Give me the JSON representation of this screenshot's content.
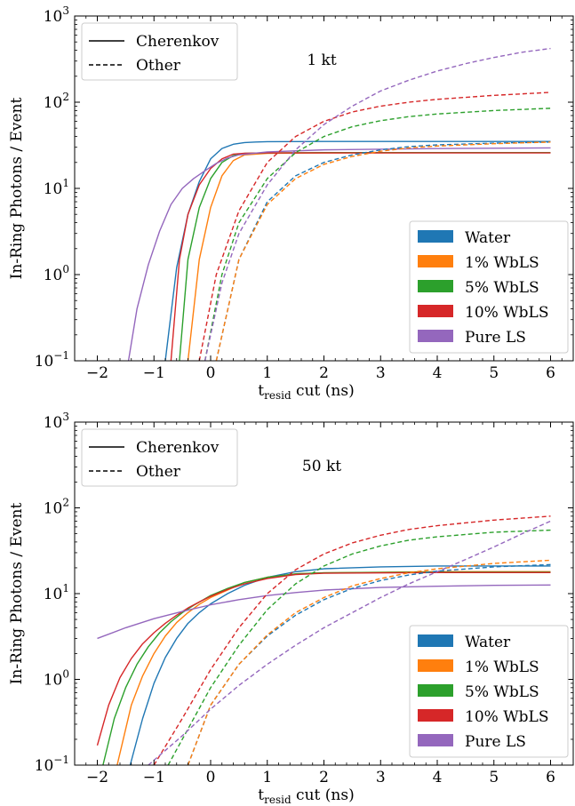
{
  "chart_data": [
    {
      "type": "line",
      "annotation": "1 kt",
      "xlabel_main": "t",
      "xlabel_sub": "resid",
      "xlabel_rest": " cut (ns)",
      "ylabel": "In-Ring Photons / Event",
      "xlim": [
        -2.4,
        6.4
      ],
      "ylim": [
        0.1,
        1000
      ],
      "yscale": "log",
      "x_ticks": [
        -2,
        -1,
        0,
        1,
        2,
        3,
        4,
        5,
        6
      ],
      "y_ticks": [
        {
          "value": 0.1,
          "base": "10",
          "exp": "−1"
        },
        {
          "value": 1,
          "base": "10",
          "exp": "0"
        },
        {
          "value": 10,
          "base": "10",
          "exp": "1"
        },
        {
          "value": 100,
          "base": "10",
          "exp": "2"
        },
        {
          "value": 1000,
          "base": "10",
          "exp": "3"
        }
      ],
      "style_legend": [
        {
          "label": "Cherenkov",
          "dash": "solid"
        },
        {
          "label": "Other",
          "dash": "dashed"
        }
      ],
      "color_legend": [
        {
          "label": "Water",
          "color": "#1f77b4"
        },
        {
          "label": "1% WbLS",
          "color": "#ff7f0e"
        },
        {
          "label": "5% WbLS",
          "color": "#2ca02c"
        },
        {
          "label": "10% WbLS",
          "color": "#d62728"
        },
        {
          "label": "Pure LS",
          "color": "#9467bd"
        }
      ],
      "series": [
        {
          "material": "Water",
          "kind": "Cherenkov",
          "color": "#1f77b4",
          "x": [
            -0.8,
            -0.6,
            -0.4,
            -0.2,
            0.0,
            0.2,
            0.4,
            0.6,
            0.8,
            1.0,
            2.0,
            4.0,
            6.0
          ],
          "y": [
            0.1,
            1.2,
            5,
            12,
            22,
            29,
            32.5,
            34,
            34.5,
            34.8,
            35,
            35,
            35
          ]
        },
        {
          "material": "1% WbLS",
          "kind": "Cherenkov",
          "color": "#ff7f0e",
          "x": [
            -0.4,
            -0.2,
            0.0,
            0.2,
            0.4,
            0.6,
            1.0,
            2.0,
            4.0,
            6.0
          ],
          "y": [
            0.1,
            1.5,
            6,
            14,
            21,
            24.5,
            25.5,
            25.8,
            26,
            26
          ]
        },
        {
          "material": "5% WbLS",
          "kind": "Cherenkov",
          "color": "#2ca02c",
          "x": [
            -0.55,
            -0.4,
            -0.2,
            0.0,
            0.2,
            0.4,
            0.6,
            1.0,
            2.0,
            4.0,
            6.0
          ],
          "y": [
            0.1,
            1.5,
            6,
            13,
            20,
            24,
            25.5,
            25.8,
            26,
            26,
            26
          ]
        },
        {
          "material": "10% WbLS",
          "kind": "Cherenkov",
          "color": "#d62728",
          "x": [
            -0.7,
            -0.55,
            -0.4,
            -0.2,
            0.0,
            0.2,
            0.4,
            0.6,
            1.0,
            2.0,
            4.0,
            6.0
          ],
          "y": [
            0.1,
            1.5,
            5,
            11,
            17,
            22,
            25,
            25.6,
            25.8,
            25.8,
            25.8,
            25.8
          ]
        },
        {
          "material": "Pure LS",
          "kind": "Cherenkov",
          "color": "#9467bd",
          "x": [
            -1.45,
            -1.3,
            -1.1,
            -0.9,
            -0.7,
            -0.5,
            -0.3,
            -0.1,
            0.1,
            0.3,
            0.5,
            1.0,
            2.0,
            4.0,
            6.0
          ],
          "y": [
            0.1,
            0.4,
            1.3,
            3.2,
            6.5,
            10,
            13,
            16,
            19.5,
            22.5,
            24.5,
            26.5,
            28,
            29,
            29.5
          ]
        },
        {
          "material": "Water",
          "kind": "Other",
          "color": "#1f77b4",
          "x": [
            0.1,
            0.5,
            1.0,
            1.5,
            2.0,
            2.5,
            3.0,
            3.5,
            4.0,
            5.0,
            6.0
          ],
          "y": [
            0.1,
            1.5,
            7,
            14,
            20,
            24.5,
            28,
            30.5,
            32,
            33.5,
            34.5
          ]
        },
        {
          "material": "1% WbLS",
          "kind": "Other",
          "color": "#ff7f0e",
          "x": [
            0.1,
            0.5,
            1.0,
            1.5,
            2.0,
            2.5,
            3.0,
            3.5,
            4.0,
            5.0,
            6.0
          ],
          "y": [
            0.1,
            1.5,
            6.5,
            13,
            19,
            23.5,
            27,
            29.5,
            31,
            33,
            34.5
          ]
        },
        {
          "material": "5% WbLS",
          "kind": "Other",
          "color": "#2ca02c",
          "x": [
            -0.1,
            0.2,
            0.5,
            1.0,
            1.5,
            2.0,
            2.5,
            3.0,
            3.5,
            4.0,
            5.0,
            6.0
          ],
          "y": [
            0.1,
            1,
            4,
            13,
            26,
            40,
            52,
            61,
            68,
            73,
            80,
            85
          ]
        },
        {
          "material": "10% WbLS",
          "kind": "Other",
          "color": "#d62728",
          "x": [
            -0.2,
            0.1,
            0.5,
            1.0,
            1.5,
            2.0,
            2.5,
            3.0,
            3.5,
            4.0,
            5.0,
            6.0
          ],
          "y": [
            0.1,
            1,
            5.5,
            20,
            40,
            60,
            77,
            90,
            100,
            108,
            120,
            130
          ]
        },
        {
          "material": "Pure LS",
          "kind": "Other",
          "color": "#9467bd",
          "x": [
            -0.1,
            0.2,
            0.5,
            1.0,
            1.5,
            2.0,
            2.5,
            3.0,
            3.5,
            4.0,
            4.5,
            5.0,
            5.5,
            6.0
          ],
          "y": [
            0.1,
            0.8,
            3,
            11,
            28,
            55,
            90,
            135,
            180,
            230,
            280,
            330,
            380,
            420
          ]
        }
      ]
    },
    {
      "type": "line",
      "annotation": "50 kt",
      "xlabel_main": "t",
      "xlabel_sub": "resid",
      "xlabel_rest": " cut (ns)",
      "ylabel": "In-Ring Photons / Event",
      "xlim": [
        -2.4,
        6.4
      ],
      "ylim": [
        0.1,
        1000
      ],
      "yscale": "log",
      "x_ticks": [
        -2,
        -1,
        0,
        1,
        2,
        3,
        4,
        5,
        6
      ],
      "y_ticks": [
        {
          "value": 0.1,
          "base": "10",
          "exp": "−1"
        },
        {
          "value": 1,
          "base": "10",
          "exp": "0"
        },
        {
          "value": 10,
          "base": "10",
          "exp": "1"
        },
        {
          "value": 100,
          "base": "10",
          "exp": "2"
        },
        {
          "value": 1000,
          "base": "10",
          "exp": "3"
        }
      ],
      "style_legend": [
        {
          "label": "Cherenkov",
          "dash": "solid"
        },
        {
          "label": "Other",
          "dash": "dashed"
        }
      ],
      "color_legend": [
        {
          "label": "Water",
          "color": "#1f77b4"
        },
        {
          "label": "1% WbLS",
          "color": "#ff7f0e"
        },
        {
          "label": "5% WbLS",
          "color": "#2ca02c"
        },
        {
          "label": "10% WbLS",
          "color": "#d62728"
        },
        {
          "label": "Pure LS",
          "color": "#9467bd"
        }
      ],
      "series": [
        {
          "material": "Water",
          "kind": "Cherenkov",
          "color": "#1f77b4",
          "x": [
            -1.42,
            -1.2,
            -1.0,
            -0.8,
            -0.6,
            -0.4,
            -0.2,
            0.0,
            0.3,
            0.6,
            1.0,
            1.5,
            2.0,
            3.0,
            4.0,
            6.0
          ],
          "y": [
            0.1,
            0.35,
            0.9,
            1.8,
            3,
            4.5,
            6,
            7.6,
            10,
            12.5,
            15.5,
            18,
            19.5,
            20.5,
            21,
            21
          ]
        },
        {
          "material": "1% WbLS",
          "kind": "Cherenkov",
          "color": "#ff7f0e",
          "x": [
            -1.65,
            -1.4,
            -1.2,
            -1.0,
            -0.8,
            -0.6,
            -0.4,
            -0.2,
            0.0,
            0.3,
            0.6,
            1.0,
            1.5,
            2.0,
            4.0,
            6.0
          ],
          "y": [
            0.1,
            0.5,
            1.1,
            2,
            3.2,
            4.6,
            6,
            7.5,
            9,
            11,
            13.5,
            15.5,
            17,
            17.5,
            18,
            18
          ]
        },
        {
          "material": "5% WbLS",
          "kind": "Cherenkov",
          "color": "#2ca02c",
          "x": [
            -1.9,
            -1.7,
            -1.5,
            -1.3,
            -1.1,
            -0.9,
            -0.7,
            -0.5,
            -0.3,
            0.0,
            0.3,
            0.6,
            1.0,
            1.5,
            2.0,
            4.0,
            6.0
          ],
          "y": [
            0.1,
            0.35,
            0.8,
            1.5,
            2.4,
            3.5,
            4.7,
            6,
            7.3,
            9.5,
            11.5,
            13.5,
            15.5,
            17,
            17.5,
            17.8,
            17.8
          ]
        },
        {
          "material": "10% WbLS",
          "kind": "Cherenkov",
          "color": "#d62728",
          "x": [
            -2.0,
            -1.8,
            -1.6,
            -1.4,
            -1.2,
            -1.0,
            -0.8,
            -0.6,
            -0.4,
            -0.2,
            0.0,
            0.3,
            0.6,
            1.0,
            1.5,
            2.0,
            4.0,
            6.0
          ],
          "y": [
            0.17,
            0.5,
            1.05,
            1.75,
            2.6,
            3.5,
            4.5,
            5.6,
            6.8,
            8,
            9.3,
            11.2,
            13,
            15,
            16.7,
            17.3,
            17.6,
            17.6
          ]
        },
        {
          "material": "Pure LS",
          "kind": "Cherenkov",
          "color": "#9467bd",
          "x": [
            -2.0,
            -1.5,
            -1.0,
            -0.5,
            0.0,
            0.5,
            1.0,
            1.5,
            2.0,
            3.0,
            4.0,
            5.0,
            6.0
          ],
          "y": [
            3,
            4,
            5.1,
            6.2,
            7.4,
            8.5,
            9.5,
            10.3,
            11,
            11.8,
            12.2,
            12.5,
            12.6
          ]
        },
        {
          "material": "Water",
          "kind": "Other",
          "color": "#1f77b4",
          "x": [
            -0.4,
            0.0,
            0.5,
            1.0,
            1.5,
            2.0,
            2.5,
            3.0,
            3.5,
            4.0,
            5.0,
            6.0
          ],
          "y": [
            0.1,
            0.5,
            1.5,
            3.2,
            5.6,
            8.5,
            11.5,
            14.2,
            16.5,
            18.3,
            20.5,
            21.8
          ]
        },
        {
          "material": "1% WbLS",
          "kind": "Other",
          "color": "#ff7f0e",
          "x": [
            -0.4,
            0.0,
            0.5,
            1.0,
            1.5,
            2.0,
            2.5,
            3.0,
            3.5,
            4.0,
            5.0,
            6.0
          ],
          "y": [
            0.1,
            0.5,
            1.5,
            3.3,
            6,
            9,
            12.3,
            15,
            17.5,
            19.5,
            22.5,
            24.5
          ]
        },
        {
          "material": "5% WbLS",
          "kind": "Other",
          "color": "#2ca02c",
          "x": [
            -0.75,
            -0.5,
            0.0,
            0.5,
            1.0,
            1.5,
            2.0,
            2.5,
            3.0,
            3.5,
            4.0,
            5.0,
            6.0
          ],
          "y": [
            0.1,
            0.2,
            0.8,
            2.5,
            6.5,
            13,
            21,
            29,
            36,
            42,
            46,
            52,
            55
          ]
        },
        {
          "material": "10% WbLS",
          "kind": "Other",
          "color": "#d62728",
          "x": [
            -1.0,
            -0.5,
            0.0,
            0.5,
            1.0,
            1.5,
            2.0,
            2.5,
            3.0,
            3.5,
            4.0,
            5.0,
            6.0
          ],
          "y": [
            0.1,
            0.35,
            1.3,
            4,
            10,
            19,
            29,
            39,
            48,
            56,
            62,
            72,
            80
          ]
        },
        {
          "material": "Pure LS",
          "kind": "Other",
          "color": "#9467bd",
          "x": [
            -1.1,
            -0.5,
            0.0,
            0.5,
            1.0,
            1.5,
            2.0,
            2.5,
            3.0,
            3.5,
            4.0,
            4.5,
            5.0,
            5.5,
            6.0
          ],
          "y": [
            0.1,
            0.22,
            0.45,
            0.85,
            1.5,
            2.5,
            4,
            6,
            9,
            13,
            18,
            25,
            35,
            50,
            70
          ]
        }
      ]
    }
  ]
}
